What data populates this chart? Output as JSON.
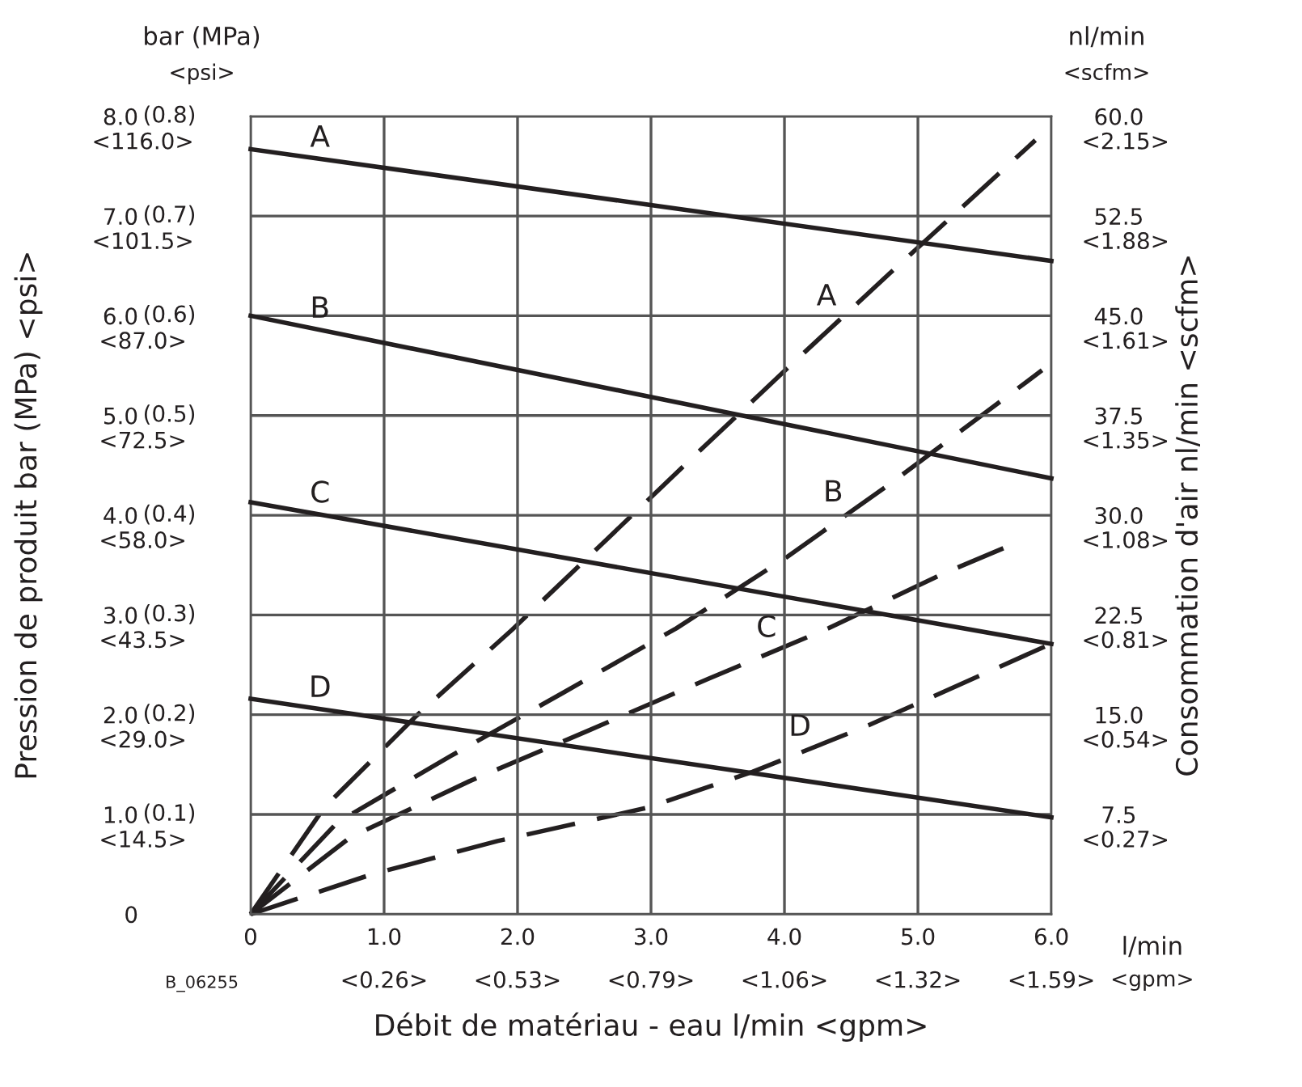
{
  "chart_data": {
    "type": "line",
    "xlabel": "Débit de matériau - eau l/min <gpm>",
    "ylabel": "Pression de produit bar (MPa) <psi>",
    "y2label": "Consommation d'air nl/min <scfm>",
    "xlim": [
      0,
      6
    ],
    "ylim": [
      0,
      8
    ],
    "y2lim": [
      0,
      60
    ],
    "xticks": [
      0,
      {
        "value": 1,
        "label": "1.0"
      },
      {
        "value": 2,
        "label": "2.0"
      },
      {
        "value": 3,
        "label": "3.0"
      },
      {
        "value": 4,
        "label": "4.0"
      },
      {
        "value": 5,
        "label": "5.0"
      },
      {
        "value": 6,
        "label": "6.0"
      }
    ],
    "yticks": [
      0,
      {
        "value": 1,
        "label": "1.0"
      },
      {
        "value": 2,
        "label": "2.0"
      },
      {
        "value": 3,
        "label": "3.0"
      },
      {
        "value": 4,
        "label": "4.0"
      },
      {
        "value": 5,
        "label": "5.0"
      },
      {
        "value": 6,
        "label": "6.0"
      },
      {
        "value": 7,
        "label": "7.0"
      },
      {
        "value": 8,
        "label": "8.0"
      }
    ],
    "y2ticks": [
      7.5,
      {
        "value": 15,
        "label": "15.0"
      },
      22.5,
      {
        "value": 30,
        "label": "30.0"
      },
      37.5,
      {
        "value": 45,
        "label": "45.0"
      },
      52.5,
      {
        "value": 60,
        "label": "60.0"
      }
    ],
    "grid": true,
    "series": [
      {
        "color": "#231f20",
        "line_style": "solid",
        "x": [
          0,
          6
        ],
        "values": [
          7.67,
          6.55
        ]
      },
      {
        "color": "#231f20",
        "line_style": "solid",
        "x": [
          0,
          6
        ],
        "values": [
          6.0,
          4.37
        ]
      },
      {
        "color": "#231f20",
        "line_style": "solid",
        "x": [
          0,
          6
        ],
        "values": [
          4.13,
          2.71
        ]
      },
      {
        "color": "#231f20",
        "line_style": "solid",
        "x": [
          0,
          6
        ],
        "values": [
          2.16,
          0.97
        ]
      },
      {
        "color": "#231f20",
        "line_style": "dashed",
        "axis": "y2",
        "x": [
          0,
          0.55,
          1.24,
          1.96,
          2.67,
          3.37,
          4.08,
          4.79,
          5.88
        ],
        "values": [
          0,
          8.0,
          14.9,
          21.4,
          28.2,
          34.9,
          41.6,
          48.2,
          58.2
        ]
      },
      {
        "color": "#231f20",
        "line_style": "dashed",
        "axis": "y2",
        "x": [
          0,
          0.65,
          1.5,
          2.35,
          3.19,
          4.01,
          4.81,
          5.93
        ],
        "values": [
          0,
          6.9,
          11.9,
          16.7,
          21.5,
          26.8,
          32.5,
          40.9
        ]
      },
      {
        "color": "#231f20",
        "line_style": "dashed",
        "axis": "y2",
        "x": [
          0,
          0.75,
          1.64,
          2.53,
          3.43,
          4.33,
          5.21,
          5.66
        ],
        "values": [
          0,
          5.8,
          10.0,
          13.8,
          17.7,
          21.5,
          25.7,
          27.6
        ]
      },
      {
        "color": "#231f20",
        "line_style": "dashed",
        "axis": "y2",
        "x": [
          0,
          0.91,
          1.85,
          2.97,
          3.76,
          4.63,
          5.99
        ],
        "values": [
          0,
          3.0,
          5.5,
          8.0,
          10.7,
          14.2,
          20.3
        ]
      }
    ],
    "annotations": [
      "A",
      "B",
      "C",
      "D",
      "A",
      "B",
      "C",
      "D",
      "bar (MPa)",
      "<psi>",
      "nl/min",
      "<scfm>",
      "l/min",
      "<gpm>",
      "B_06255",
      "<0.26>",
      "<0.53>",
      "<0.79>",
      "<1.06>",
      "<1.32>",
      "<1.59>",
      "<14.5>",
      "<29.0>",
      "<43.5>",
      "<58.0>",
      "<72.5>",
      "<87.0>",
      "<101.5>",
      "<116.0>",
      "<0.27>",
      "<0.54>",
      "<0.81>",
      "<1.08>",
      "<1.35>",
      "<1.61>",
      "<1.88>",
      "<2.15>",
      "(0.1)",
      "(0.2)",
      "(0.3)",
      "(0.4)",
      "(0.5)",
      "(0.6)",
      "(0.7)",
      "(0.8)"
    ]
  }
}
